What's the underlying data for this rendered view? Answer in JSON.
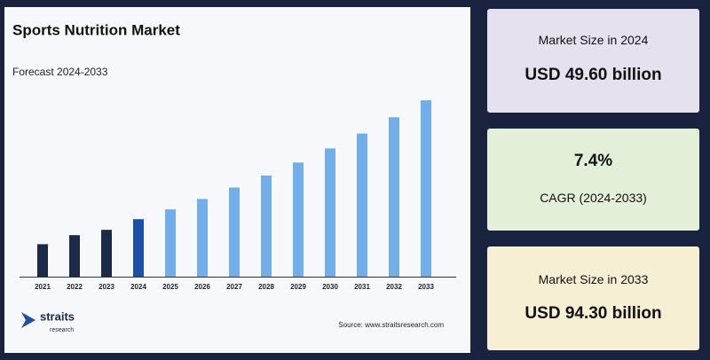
{
  "chart_data": {
    "type": "bar",
    "title": "Sports Nutrition Market",
    "subtitle": "Forecast 2024-2033",
    "categories": [
      "2021",
      "2022",
      "2023",
      "2024",
      "2025",
      "2026",
      "2027",
      "2028",
      "2029",
      "2030",
      "2031",
      "2032",
      "2033"
    ],
    "values": [
      40.2,
      43.6,
      45.6,
      49.6,
      53.3,
      57.2,
      61.5,
      66.0,
      70.9,
      76.2,
      81.8,
      87.9,
      94.3
    ],
    "colors": [
      "#1b2a48",
      "#1b2a48",
      "#1b2a48",
      "#1d4fa6",
      "#72aee8",
      "#72aee8",
      "#72aee8",
      "#72aee8",
      "#72aee8",
      "#72aee8",
      "#72aee8",
      "#72aee8",
      "#72aee8"
    ],
    "ylim": [
      28,
      96
    ]
  },
  "brand": {
    "name": "straits",
    "tagline": "research"
  },
  "source": "Source: www.straitsresearch.com",
  "cards": [
    {
      "label": "Market Size in 2024",
      "value": "USD 49.60 billion"
    },
    {
      "value": "7.4%",
      "label": "CAGR (2024-2033)"
    },
    {
      "label": "Market Size in 2033",
      "value": "USD 94.30 billion"
    }
  ]
}
